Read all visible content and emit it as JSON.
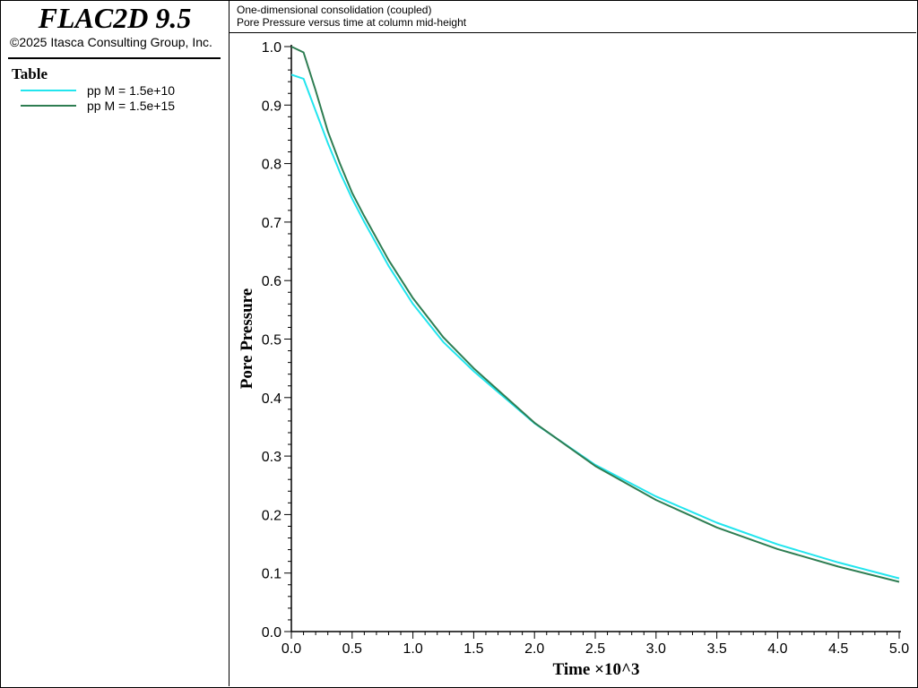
{
  "app": {
    "title": "FLAC2D 9.5",
    "copyright": "©2025 Itasca Consulting Group, Inc."
  },
  "legend": {
    "heading": "Table",
    "items": [
      {
        "label": "pp M = 1.5e+10",
        "color": "#22E5EE"
      },
      {
        "label": "pp M = 1.5e+15",
        "color": "#2E7D52"
      }
    ]
  },
  "header": {
    "title": "One-dimensional consolidation (coupled)",
    "subtitle": "Pore Pressure versus time at column mid-height"
  },
  "chart_data": {
    "type": "line",
    "title": "One-dimensional consolidation (coupled)",
    "subtitle": "Pore Pressure versus time at column mid-height",
    "xlabel": "Time ×10^3",
    "ylabel": "Pore Pressure",
    "xlim": [
      0.0,
      5.0
    ],
    "ylim": [
      0.0,
      1.0
    ],
    "x_ticks": [
      "0.0",
      "0.5",
      "1.0",
      "1.5",
      "2.0",
      "2.5",
      "3.0",
      "3.5",
      "4.0",
      "4.5",
      "5.0"
    ],
    "y_ticks": [
      "0.0",
      "0.1",
      "0.2",
      "0.3",
      "0.4",
      "0.5",
      "0.6",
      "0.7",
      "0.8",
      "0.9",
      "1.0"
    ],
    "grid": false,
    "series": [
      {
        "name": "pp M = 1.5e+10",
        "color": "#22E5EE",
        "x": [
          0.0,
          0.1,
          0.2,
          0.3,
          0.4,
          0.5,
          0.6,
          0.8,
          1.0,
          1.25,
          1.5,
          2.0,
          2.5,
          3.0,
          3.5,
          4.0,
          4.5,
          5.0
        ],
        "y": [
          0.952,
          0.945,
          0.89,
          0.835,
          0.785,
          0.74,
          0.7,
          0.625,
          0.56,
          0.495,
          0.445,
          0.356,
          0.285,
          0.231,
          0.186,
          0.149,
          0.118,
          0.091
        ]
      },
      {
        "name": "pp M = 1.5e+15",
        "color": "#2E7D52",
        "x": [
          0.0,
          0.1,
          0.2,
          0.3,
          0.4,
          0.5,
          0.6,
          0.8,
          1.0,
          1.25,
          1.5,
          2.0,
          2.5,
          3.0,
          3.5,
          4.0,
          4.5,
          5.0
        ],
        "y": [
          1.0,
          0.99,
          0.925,
          0.855,
          0.8,
          0.75,
          0.71,
          0.635,
          0.57,
          0.503,
          0.45,
          0.357,
          0.283,
          0.225,
          0.178,
          0.141,
          0.111,
          0.085
        ]
      }
    ]
  }
}
